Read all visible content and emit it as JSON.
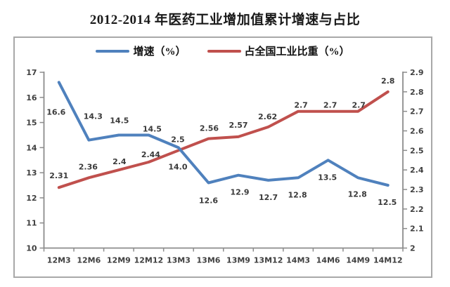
{
  "title": "2012-2014 年医药工业增加值累计增速与占比",
  "colors": {
    "growth_line": "#4f81bd",
    "share_line": "#c0504d",
    "axis": "#8c8c8c",
    "frame_border": "#a8a8a8",
    "label_text": "#3a3a3a"
  },
  "legend": {
    "items": [
      {
        "name": "增速（%）",
        "color": "#4f81bd"
      },
      {
        "name": "占全国工业比重（%）",
        "color": "#c0504d"
      }
    ]
  },
  "chart_data": {
    "type": "line",
    "title": "2012-2014 年医药工业增加值累计增速与占比",
    "categories": [
      "12M3",
      "12M6",
      "12M9",
      "12M12",
      "13M3",
      "13M6",
      "13M9",
      "13M12",
      "14M3",
      "14M6",
      "14M9",
      "14M12"
    ],
    "series": [
      {
        "name": "增速（%）",
        "axis": "left",
        "color": "#4f81bd",
        "values": [
          16.6,
          14.3,
          14.5,
          14.5,
          14.0,
          12.6,
          12.9,
          12.7,
          12.8,
          13.5,
          12.8,
          12.5
        ],
        "labels": [
          "16.6",
          "14.3",
          "14.5",
          "14.5",
          "14.0",
          "12.6",
          "12.9",
          "12.7",
          "12.8",
          "13.5",
          "12.8",
          "12.5"
        ]
      },
      {
        "name": "占全国工业比重（%）",
        "axis": "right",
        "color": "#c0504d",
        "values": [
          2.31,
          2.36,
          2.4,
          2.44,
          2.5,
          2.56,
          2.57,
          2.62,
          2.7,
          2.7,
          2.7,
          2.8
        ],
        "labels": [
          "2.31",
          "2.36",
          "2.4",
          "2.44",
          "2.5",
          "2.56",
          "2.57",
          "2.62",
          "2.7",
          "2.7",
          "2.7",
          "2.8"
        ]
      }
    ],
    "left_axis": {
      "min": 10,
      "max": 17,
      "tick_step": 1,
      "ticks": [
        "17",
        "16",
        "15",
        "14",
        "13",
        "12",
        "11",
        "10"
      ]
    },
    "right_axis": {
      "min": 2,
      "max": 2.9,
      "tick_step": 0.1,
      "ticks": [
        "2.9",
        "2.8",
        "2.7",
        "2.6",
        "2.5",
        "2.4",
        "2.3",
        "2.2",
        "2.1",
        "2"
      ]
    },
    "grid": false,
    "legend_position": "top"
  }
}
